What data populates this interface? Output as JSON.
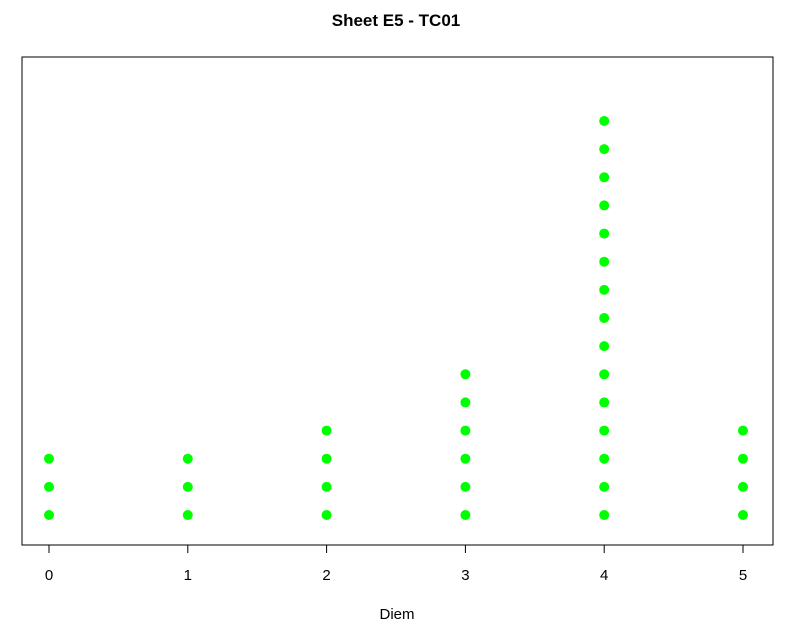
{
  "chart_data": {
    "type": "scatter",
    "title": "Sheet E5 - TC01",
    "xlabel": "Diem",
    "ylabel": "",
    "x_ticks": [
      "0",
      "1",
      "2",
      "3",
      "4",
      "5"
    ],
    "xlim": [
      0,
      5
    ],
    "ylim": [
      1,
      15
    ],
    "y_axis_shown": false,
    "grid": false,
    "legend": "none",
    "marker_color": "#00ff00",
    "points": [
      {
        "x": 0,
        "count": 3
      },
      {
        "x": 1,
        "count": 3
      },
      {
        "x": 2,
        "count": 4
      },
      {
        "x": 3,
        "count": 6
      },
      {
        "x": 4,
        "count": 15
      },
      {
        "x": 5,
        "count": 4
      }
    ]
  }
}
